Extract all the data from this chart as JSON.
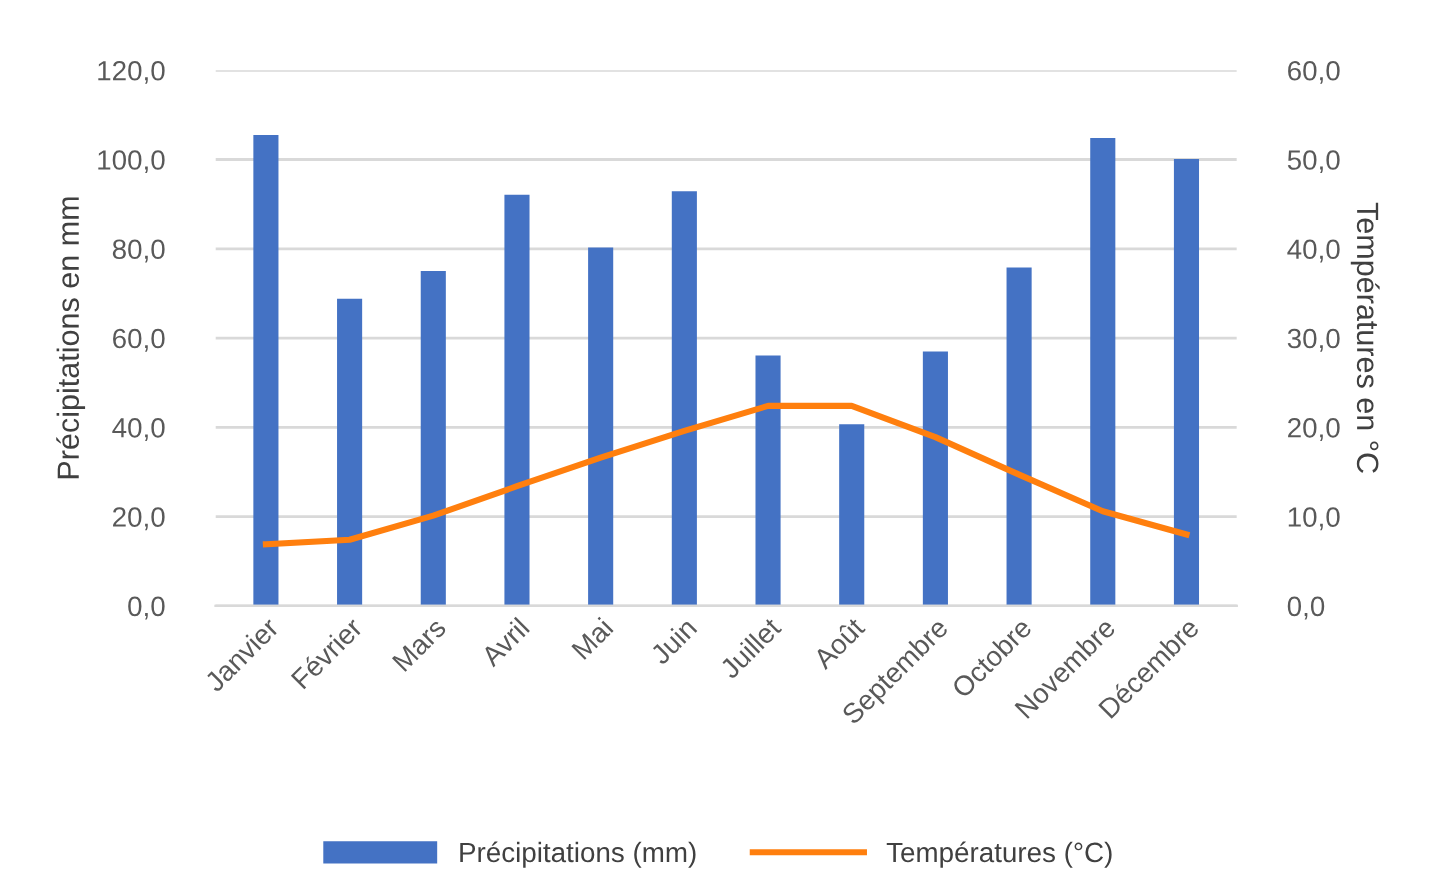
{
  "chart_data": {
    "type": "bar",
    "ylabel": "Précipitations en mm",
    "y2label": "Températures en °C",
    "categories": [
      "Janvier",
      "Février",
      "Mars",
      "Avril",
      "Mai",
      "Juin",
      "Juillet",
      "Août",
      "Septembre",
      "Octobre",
      "Novembre",
      "Décembre"
    ],
    "series": [
      {
        "name": "Précipitations (mm)",
        "color": "#4472c4",
        "values": [
          105.5,
          68.8,
          75.0,
          92.1,
          80.3,
          92.9,
          56.1,
          40.7,
          57.0,
          75.8,
          104.8,
          100.1
        ]
      },
      {
        "name": "Températures (°C)",
        "color": "#ff7f0e",
        "type": "line",
        "axis": "y2",
        "values": [
          6.9,
          7.4,
          10.1,
          13.4,
          16.6,
          19.6,
          22.4,
          22.4,
          18.9,
          14.7,
          10.6,
          8.0
        ]
      }
    ],
    "ylim": [
      0,
      120
    ],
    "yticks": [
      {
        "value": 0,
        "label": "0,0"
      },
      {
        "value": 20,
        "label": "20,0"
      },
      {
        "value": 40,
        "label": "40,0"
      },
      {
        "value": 60,
        "label": "60,0"
      },
      {
        "value": 80,
        "label": "80,0"
      },
      {
        "value": 100,
        "label": "100,0"
      },
      {
        "value": 120,
        "label": "120,0"
      }
    ],
    "y2lim": [
      0,
      60
    ],
    "y2ticks": [
      {
        "value": 0,
        "label": "0,0"
      },
      {
        "value": 10,
        "label": "10,0"
      },
      {
        "value": 20,
        "label": "20,0"
      },
      {
        "value": 30,
        "label": "30,0"
      },
      {
        "value": 40,
        "label": "40,0"
      },
      {
        "value": 50,
        "label": "50,0"
      },
      {
        "value": 60,
        "label": "60,0"
      }
    ],
    "grid": "y",
    "legend": "bottom",
    "marker": "none"
  }
}
